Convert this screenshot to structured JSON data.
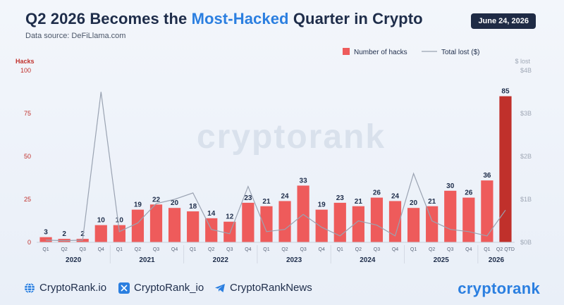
{
  "header": {
    "title_prefix": "Q2 2026 Becomes the ",
    "title_highlight": "Most-Hacked",
    "title_suffix": " Quarter in Crypto",
    "source": "Data source: DeFiLlama.com",
    "date": "June 24, 2026"
  },
  "watermark": "cryptorank",
  "footer": {
    "site": "CryptoRank.io",
    "x_handle": "CryptoRank_io",
    "telegram": "CryptoRankNews",
    "brand": "cryptorank"
  },
  "colors": {
    "bar": "#ee5b5b",
    "bar_highlight": "#c0302b",
    "line": "#9aa3b2",
    "accent": "#2b7fe0"
  },
  "chart_data": {
    "type": "bar",
    "categories": [
      "Q1",
      "Q2",
      "Q3",
      "Q4",
      "Q1",
      "Q2",
      "Q3",
      "Q4",
      "Q1",
      "Q2",
      "Q3",
      "Q4",
      "Q1",
      "Q2",
      "Q3",
      "Q4",
      "Q1",
      "Q2",
      "Q3",
      "Q4",
      "Q1",
      "Q2",
      "Q3",
      "Q4",
      "Q1",
      "Q2 QTD"
    ],
    "years": [
      {
        "label": "2020",
        "start": 0,
        "end": 3
      },
      {
        "label": "2021",
        "start": 4,
        "end": 7
      },
      {
        "label": "2022",
        "start": 8,
        "end": 11
      },
      {
        "label": "2023",
        "start": 12,
        "end": 15
      },
      {
        "label": "2024",
        "start": 16,
        "end": 19
      },
      {
        "label": "2025",
        "start": 20,
        "end": 23
      },
      {
        "label": "2026",
        "start": 24,
        "end": 25
      }
    ],
    "series": [
      {
        "name": "Number of hacks",
        "axis": "left",
        "values": [
          3,
          2,
          2,
          10,
          10,
          19,
          22,
          20,
          18,
          14,
          12,
          23,
          21,
          24,
          33,
          19,
          23,
          21,
          26,
          24,
          20,
          21,
          30,
          26,
          36,
          85
        ]
      },
      {
        "name": "Total lost ($)",
        "axis": "right",
        "values": [
          0.05,
          0.04,
          0.05,
          3.5,
          0.25,
          0.45,
          0.9,
          1.0,
          1.15,
          0.3,
          0.2,
          1.3,
          0.25,
          0.3,
          0.65,
          0.35,
          0.15,
          0.5,
          0.4,
          0.15,
          1.6,
          0.5,
          0.3,
          0.25,
          0.15,
          0.75
        ]
      }
    ],
    "highlight_index": 25,
    "ylabel_left": "Hacks",
    "ylabel_right": "$ lost",
    "yticks_left": [
      0,
      25,
      50,
      75,
      100
    ],
    "ylim_left": [
      0,
      100
    ],
    "yticks_right": [
      "$0B",
      "$1B",
      "$2B",
      "$3B",
      "$4B"
    ],
    "ylim_right": [
      0,
      4
    ],
    "legend": [
      "Number of hacks",
      "Total lost ($)"
    ],
    "legend_position": "top-right"
  }
}
